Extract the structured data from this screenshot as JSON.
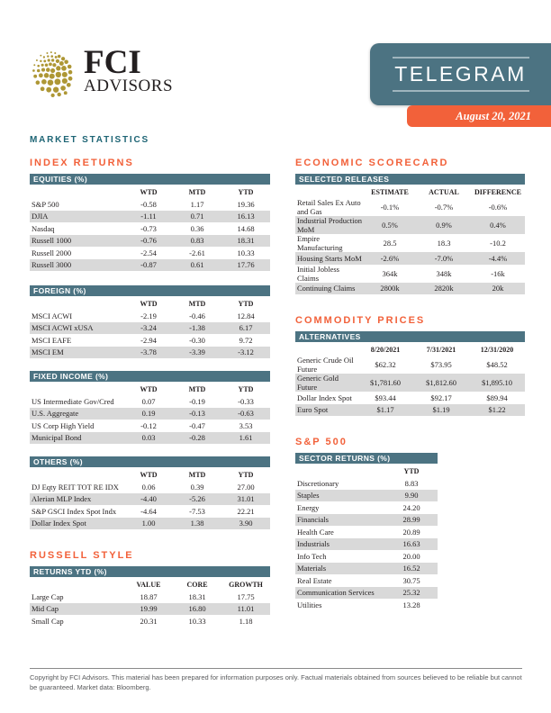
{
  "colors": {
    "teal_banner": "#4C7382",
    "orange_accent": "#F2613A",
    "dark_teal_text": "#1E6575",
    "row_stripe": "#D9D9D9",
    "logo_gold": "#AE9735",
    "body_text": "#231F20",
    "footer_text": "#58595B"
  },
  "header": {
    "logo_brand": "FCI",
    "logo_sub": "ADVISORS",
    "logo_icon": "globe-dots-icon",
    "banner_title": "TELEGRAM",
    "date": "August 20, 2021",
    "page_title": "MARKET STATISTICS"
  },
  "sections": {
    "index_returns": "INDEX RETURNS",
    "russell_style": "RUSSELL STYLE",
    "economic_scorecard": "ECONOMIC SCORECARD",
    "commodity_prices": "COMMODITY PRICES",
    "sp500": "S&P 500"
  },
  "tables": {
    "equities": {
      "title": "EQUITIES (%)",
      "columns": [
        "",
        "WTD",
        "MTD",
        "YTD"
      ],
      "rows": [
        [
          "S&P 500",
          "-0.58",
          "1.17",
          "19.36"
        ],
        [
          "DJIA",
          "-1.11",
          "0.71",
          "16.13"
        ],
        [
          "Nasdaq",
          "-0.73",
          "0.36",
          "14.68"
        ],
        [
          "Russell 1000",
          "-0.76",
          "0.83",
          "18.31"
        ],
        [
          "Russell 2000",
          "-2.54",
          "-2.61",
          "10.33"
        ],
        [
          "Russell 3000",
          "-0.87",
          "0.61",
          "17.76"
        ]
      ]
    },
    "foreign": {
      "title": "FOREIGN (%)",
      "columns": [
        "",
        "WTD",
        "MTD",
        "YTD"
      ],
      "rows": [
        [
          "MSCI ACWI",
          "-2.19",
          "-0.46",
          "12.84"
        ],
        [
          "MSCI ACWI xUSA",
          "-3.24",
          "-1.38",
          "6.17"
        ],
        [
          "MSCI EAFE",
          "-2.94",
          "-0.30",
          "9.72"
        ],
        [
          "MSCI EM",
          "-3.78",
          "-3.39",
          "-3.12"
        ]
      ]
    },
    "fixed_income": {
      "title": "FIXED INCOME (%)",
      "columns": [
        "",
        "WTD",
        "MTD",
        "YTD"
      ],
      "rows": [
        [
          "US Intermediate Gov/Cred",
          "0.07",
          "-0.19",
          "-0.33"
        ],
        [
          "U.S. Aggregate",
          "0.19",
          "-0.13",
          "-0.63"
        ],
        [
          "US Corp High Yield",
          "-0.12",
          "-0.47",
          "3.53"
        ],
        [
          "Municipal Bond",
          "0.03",
          "-0.28",
          "1.61"
        ]
      ]
    },
    "others": {
      "title": "OTHERS (%)",
      "columns": [
        "",
        "WTD",
        "MTD",
        "YTD"
      ],
      "rows": [
        [
          "DJ Eqty REIT TOT RE IDX",
          "0.06",
          "0.39",
          "27.00"
        ],
        [
          "Alerian MLP Index",
          "-4.40",
          "-5.26",
          "31.01"
        ],
        [
          "S&P GSCI Index Spot Indx",
          "-4.64",
          "-7.53",
          "22.21"
        ],
        [
          "Dollar Index Spot",
          "1.00",
          "1.38",
          "3.90"
        ]
      ]
    },
    "russell_returns": {
      "title": "RETURNS YTD (%)",
      "columns": [
        "",
        "VALUE",
        "CORE",
        "GROWTH"
      ],
      "rows": [
        [
          "Large Cap",
          "18.87",
          "18.31",
          "17.75"
        ],
        [
          "Mid Cap",
          "19.99",
          "16.80",
          "11.01"
        ],
        [
          "Small Cap",
          "20.31",
          "10.33",
          "1.18"
        ]
      ]
    },
    "selected_releases": {
      "title": "SELECTED RELEASES",
      "columns": [
        "",
        "ESTIMATE",
        "ACTUAL",
        "DIFFERENCE"
      ],
      "rows": [
        [
          "Retail Sales Ex Auto and Gas",
          "-0.1%",
          "-0.7%",
          "-0.6%"
        ],
        [
          "Industrial Production MoM",
          "0.5%",
          "0.9%",
          "0.4%"
        ],
        [
          "Empire Manufacturing",
          "28.5",
          "18.3",
          "-10.2"
        ],
        [
          "Housing Starts MoM",
          "-2.6%",
          "-7.0%",
          "-4.4%"
        ],
        [
          "Initial Jobless Claims",
          "364k",
          "348k",
          "-16k"
        ],
        [
          "Continuing Claims",
          "2800k",
          "2820k",
          "20k"
        ]
      ]
    },
    "alternatives": {
      "title": "ALTERNATIVES",
      "columns": [
        "",
        "8/20/2021",
        "7/31/2021",
        "12/31/2020"
      ],
      "rows": [
        [
          "Generic Crude Oil Future",
          "$62.32",
          "$73.95",
          "$48.52"
        ],
        [
          "Generic Gold Future",
          "$1,781.60",
          "$1,812.60",
          "$1,895.10"
        ],
        [
          "Dollar Index Spot",
          "$93.44",
          "$92.17",
          "$89.94"
        ],
        [
          "Euro Spot",
          "$1.17",
          "$1.19",
          "$1.22"
        ]
      ]
    },
    "sector_returns": {
      "title": "SECTOR RETURNS (%)",
      "columns": [
        "",
        "YTD"
      ],
      "rows": [
        [
          "Discretionary",
          "8.83"
        ],
        [
          "Staples",
          "9.90"
        ],
        [
          "Energy",
          "24.20"
        ],
        [
          "Financials",
          "28.99"
        ],
        [
          "Health Care",
          "20.89"
        ],
        [
          "Industrials",
          "16.63"
        ],
        [
          "Info Tech",
          "20.00"
        ],
        [
          "Materials",
          "16.52"
        ],
        [
          "Real Estate",
          "30.75"
        ],
        [
          "Communication Services",
          "25.32"
        ],
        [
          "Utilities",
          "13.28"
        ]
      ]
    }
  },
  "footer": {
    "text": "Copyright by FCI Advisors. This material has been prepared for information purposes only. Factual materials obtained from sources believed to be reliable but cannot be guaranteed. Market data: Bloomberg."
  }
}
